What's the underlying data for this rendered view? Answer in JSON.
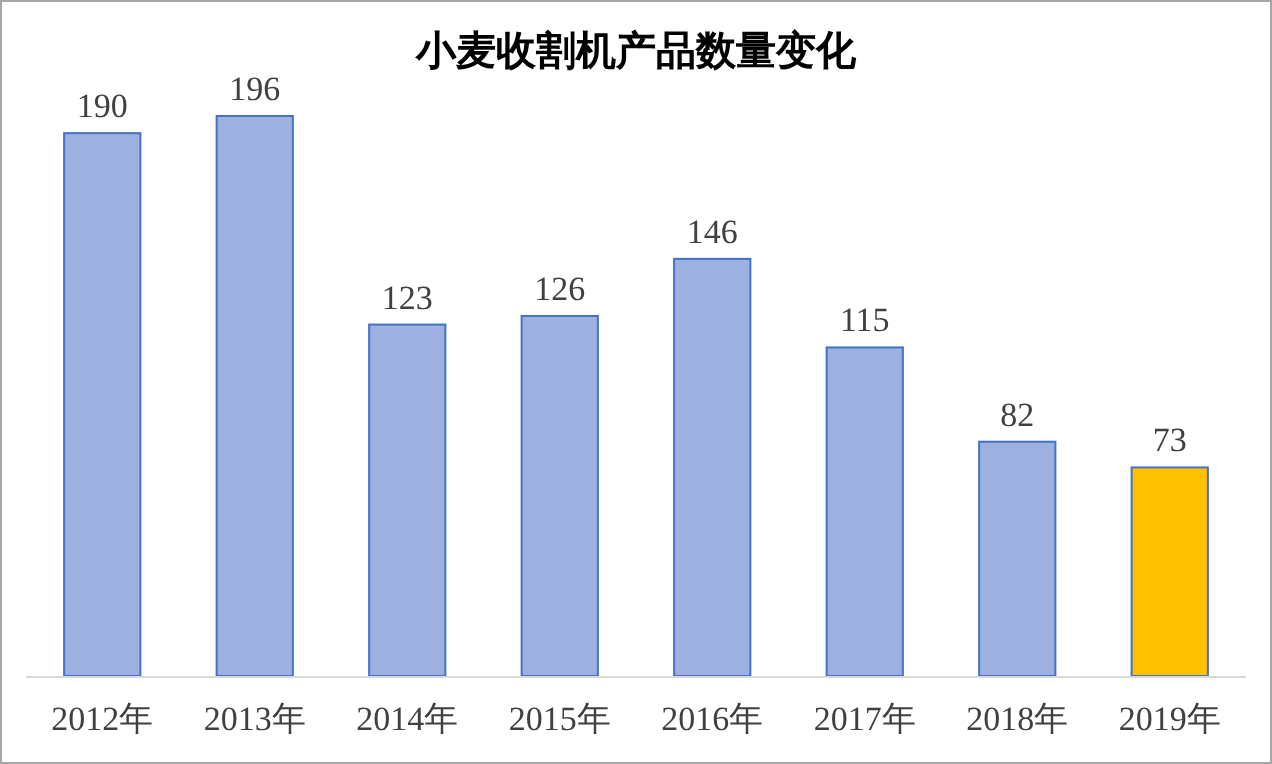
{
  "chart_data": {
    "type": "bar",
    "title": "小麦收割机产品数量变化",
    "categories": [
      "2012年",
      "2013年",
      "2014年",
      "2015年",
      "2016年",
      "2017年",
      "2018年",
      "2019年"
    ],
    "values": [
      190,
      196,
      123,
      126,
      146,
      115,
      82,
      73
    ],
    "colors": [
      "#9db0e0",
      "#9db0e0",
      "#9db0e0",
      "#9db0e0",
      "#9db0e0",
      "#9db0e0",
      "#9db0e0",
      "#ffc000"
    ],
    "data_labels": true
  }
}
